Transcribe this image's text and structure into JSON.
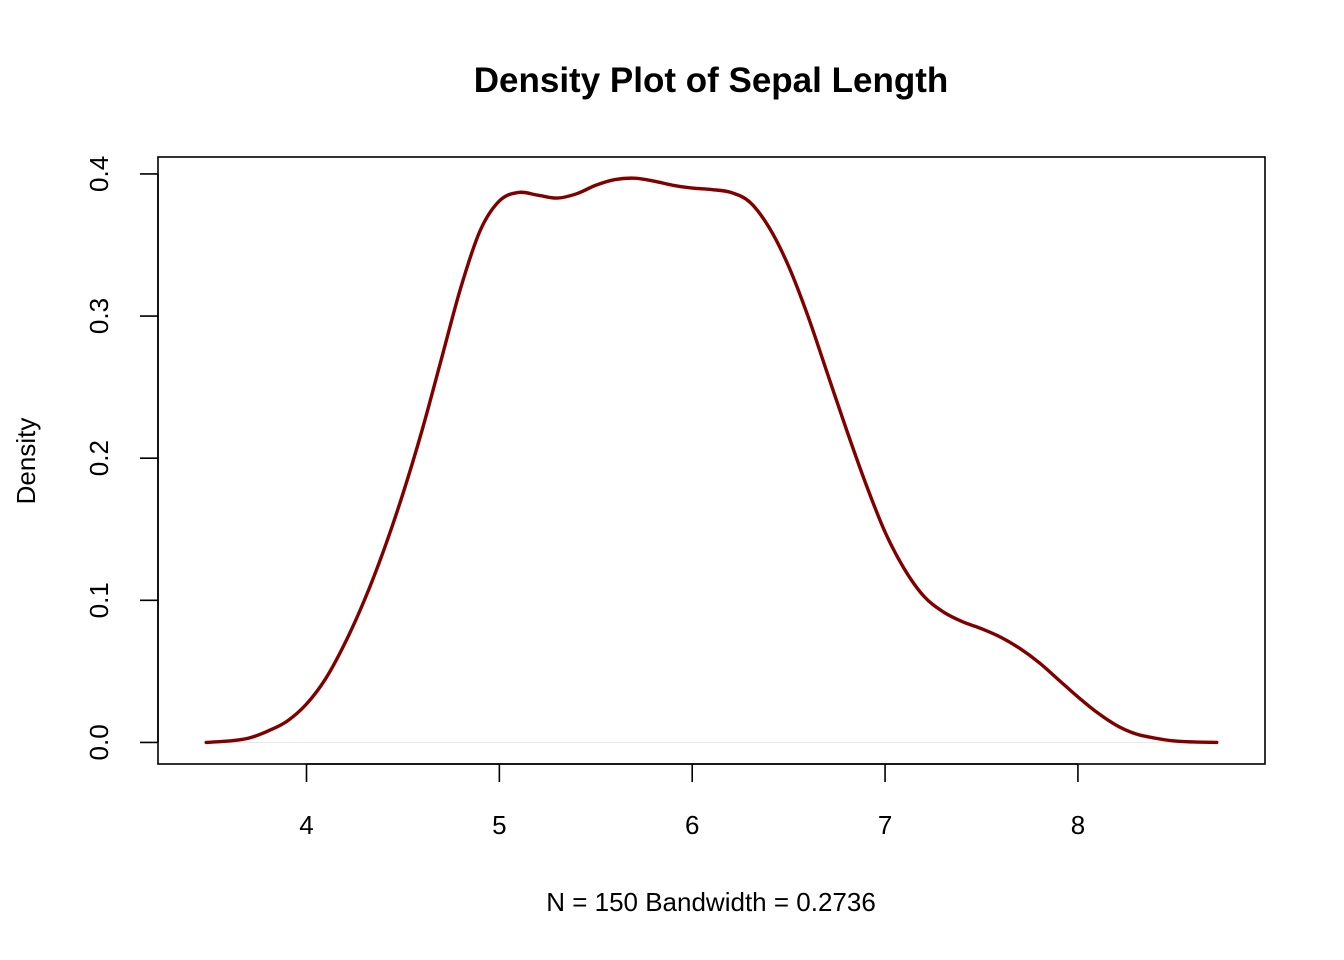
{
  "chart_data": {
    "type": "line",
    "title": "Density Plot of Sepal Length",
    "ylabel": "Density",
    "xlabel": "N = 150   Bandwidth = 0.2736",
    "xlim": [
      3.23,
      8.97
    ],
    "ylim": [
      -0.0152,
      0.4119
    ],
    "x_ticks": [
      4,
      5,
      6,
      7,
      8
    ],
    "x_tick_labels": [
      "4",
      "5",
      "6",
      "7",
      "8"
    ],
    "y_ticks": [
      0.0,
      0.1,
      0.2,
      0.3,
      0.4
    ],
    "y_tick_labels": [
      "0.0",
      "0.1",
      "0.2",
      "0.3",
      "0.4"
    ],
    "grid": false,
    "baseline": 0,
    "series": [
      {
        "color": "#800000",
        "x": [
          3.48,
          3.6,
          3.7,
          3.8,
          3.9,
          4.0,
          4.1,
          4.2,
          4.3,
          4.4,
          4.5,
          4.6,
          4.7,
          4.8,
          4.9,
          5.0,
          5.1,
          5.2,
          5.3,
          5.4,
          5.5,
          5.6,
          5.7,
          5.8,
          5.9,
          6.0,
          6.1,
          6.2,
          6.3,
          6.4,
          6.5,
          6.6,
          6.7,
          6.8,
          6.9,
          7.0,
          7.1,
          7.2,
          7.3,
          7.4,
          7.5,
          7.6,
          7.7,
          7.8,
          7.9,
          8.0,
          8.1,
          8.2,
          8.3,
          8.4,
          8.5,
          8.6,
          8.72
        ],
        "y": [
          0.0,
          0.001,
          0.003,
          0.008,
          0.015,
          0.027,
          0.045,
          0.07,
          0.1,
          0.135,
          0.175,
          0.22,
          0.27,
          0.32,
          0.36,
          0.381,
          0.387,
          0.385,
          0.383,
          0.386,
          0.392,
          0.396,
          0.397,
          0.395,
          0.392,
          0.39,
          0.389,
          0.387,
          0.38,
          0.362,
          0.335,
          0.3,
          0.26,
          0.22,
          0.182,
          0.148,
          0.122,
          0.103,
          0.092,
          0.085,
          0.08,
          0.074,
          0.066,
          0.056,
          0.044,
          0.032,
          0.021,
          0.012,
          0.006,
          0.003,
          0.001,
          0.0003,
          0.0
        ]
      }
    ]
  }
}
